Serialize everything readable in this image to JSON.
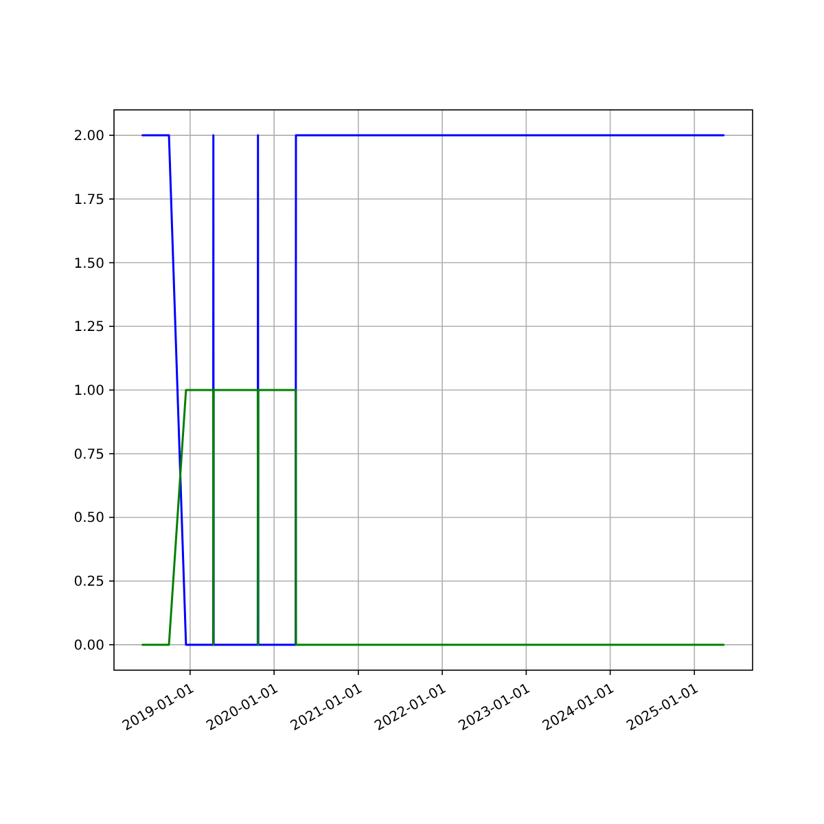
{
  "chart_data": {
    "type": "line",
    "series": [
      {
        "color": "#0000ff",
        "x": [
          "2018-06-08",
          "2018-10-01",
          "2018-12-14",
          "2019-04-11",
          "2019-04-12",
          "2019-04-13",
          "2019-10-22",
          "2019-10-23",
          "2019-10-24",
          "2020-04-04",
          "2020-04-05",
          "2025-05-08"
        ],
        "values": [
          2,
          2,
          0,
          0,
          2,
          0,
          0,
          2,
          0,
          0,
          2,
          2
        ]
      },
      {
        "color": "#008000",
        "x": [
          "2018-06-08",
          "2018-10-01",
          "2018-12-14",
          "2019-04-11",
          "2019-04-12",
          "2019-04-13",
          "2019-10-22",
          "2019-10-23",
          "2019-10-24",
          "2020-04-04",
          "2020-04-05",
          "2025-05-08"
        ],
        "values": [
          0,
          0,
          1,
          1,
          0,
          1,
          1,
          0,
          1,
          1,
          0,
          0
        ]
      }
    ],
    "xlim": [
      "2018-02-04",
      "2025-09-11"
    ],
    "xticks": [
      "2019-01-01",
      "2020-01-01",
      "2021-01-01",
      "2022-01-01",
      "2023-01-01",
      "2024-01-01",
      "2025-01-01"
    ],
    "ylim": [
      -0.1,
      2.1
    ],
    "yticks": [
      {
        "value": 0,
        "label": "0.00"
      },
      {
        "value": 0.25,
        "label": "0.25"
      },
      {
        "value": 0.5,
        "label": "0.50"
      },
      {
        "value": 0.75,
        "label": "0.75"
      },
      {
        "value": 1,
        "label": "1.00"
      },
      {
        "value": 1.25,
        "label": "1.25"
      },
      {
        "value": 1.5,
        "label": "1.50"
      },
      {
        "value": 1.75,
        "label": "1.75"
      },
      {
        "value": 2,
        "label": "2.00"
      }
    ],
    "grid": true,
    "marker": "none",
    "line_style": "solid"
  }
}
